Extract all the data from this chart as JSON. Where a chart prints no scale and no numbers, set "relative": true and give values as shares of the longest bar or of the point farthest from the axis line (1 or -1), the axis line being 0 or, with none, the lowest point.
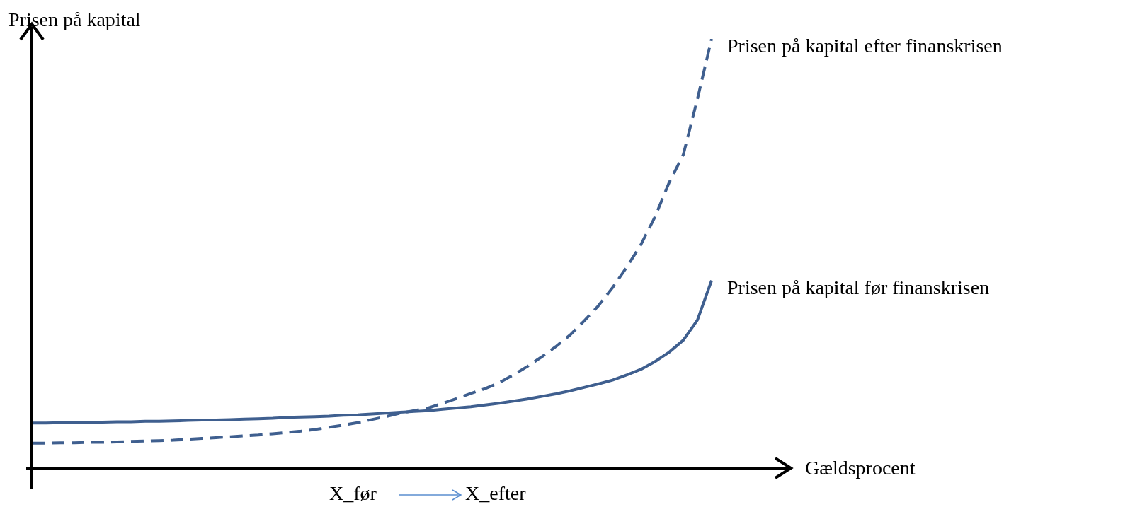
{
  "chart_data": {
    "type": "line",
    "relative": true,
    "xlabel": "Gældsprocent",
    "ylabel": "Prisen på kapital",
    "categories": [
      null,
      null,
      null,
      null,
      null,
      null,
      null,
      null,
      null,
      null,
      null,
      null,
      null,
      null,
      null,
      null,
      null,
      null,
      null,
      null,
      null,
      null,
      null,
      null,
      null,
      null,
      null,
      null,
      null,
      null,
      null,
      null,
      null,
      null,
      null,
      null,
      null,
      null,
      null,
      null,
      null,
      null,
      null,
      null,
      null,
      null,
      null,
      null,
      null
    ],
    "series": [
      {
        "name": "Prisen på kapital efter finanskrisen",
        "color": "#3f5f8f",
        "line_style": "dashed",
        "values": [
          0.058,
          0.058,
          0.059,
          0.059,
          0.06,
          0.06,
          0.061,
          0.062,
          0.063,
          0.064,
          0.065,
          0.067,
          0.069,
          0.071,
          0.073,
          0.075,
          0.077,
          0.08,
          0.083,
          0.086,
          0.09,
          0.095,
          0.1,
          0.106,
          0.113,
          0.12,
          0.128,
          0.134,
          0.14,
          0.151,
          0.162,
          0.174,
          0.185,
          0.199,
          0.217,
          0.237,
          0.259,
          0.283,
          0.31,
          0.343,
          0.378,
          0.42,
          0.468,
          0.52,
          0.585,
          0.665,
          0.73,
          0.86,
          1
        ]
      },
      {
        "name": "Prisen på kapital før finanskrisen",
        "color": "#3f5f8f",
        "line_style": "solid",
        "values": [
          0.105,
          0.105,
          0.106,
          0.106,
          0.107,
          0.107,
          0.108,
          0.108,
          0.109,
          0.109,
          0.11,
          0.111,
          0.112,
          0.112,
          0.113,
          0.114,
          0.115,
          0.116,
          0.118,
          0.119,
          0.12,
          0.121,
          0.123,
          0.124,
          0.126,
          0.128,
          0.13,
          0.132,
          0.134,
          0.137,
          0.14,
          0.143,
          0.147,
          0.151,
          0.156,
          0.161,
          0.167,
          0.173,
          0.18,
          0.188,
          0.196,
          0.205,
          0.217,
          0.23,
          0.248,
          0.27,
          0.298,
          0.345,
          0.437
        ]
      }
    ],
    "annotations": [
      "X_før",
      "X_efter"
    ]
  }
}
